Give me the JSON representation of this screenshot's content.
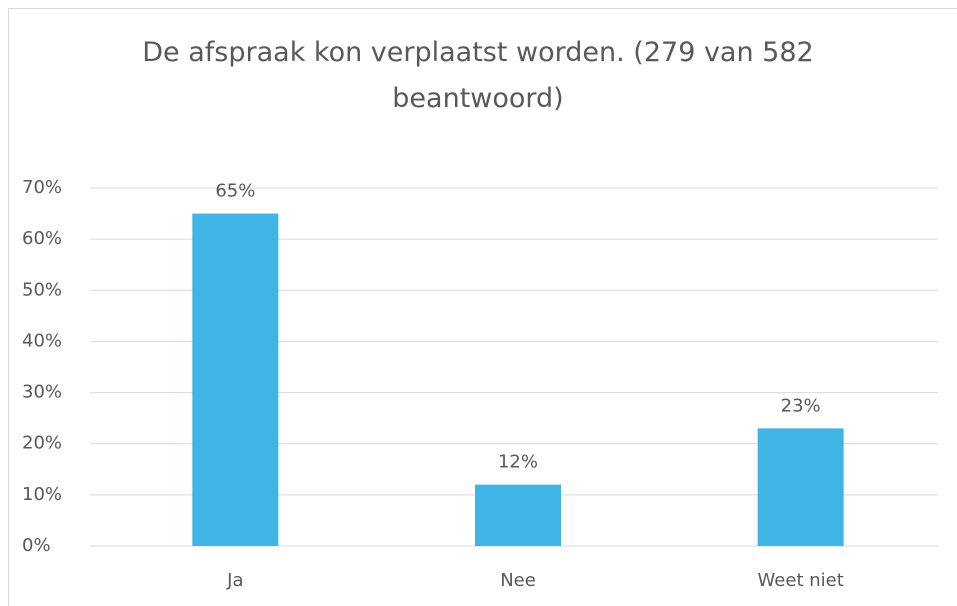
{
  "chart_data": {
    "type": "bar",
    "title": "De afspraak kon verplaatst worden. (279 van 582 beantwoord)",
    "categories": [
      "Ja",
      "Nee",
      "Weet niet"
    ],
    "values": [
      65,
      12,
      23
    ],
    "value_labels": [
      "65%",
      "12%",
      "23%"
    ],
    "color": "#41b4e6",
    "ylim": [
      0,
      70
    ],
    "yticks": [
      {
        "value": 0,
        "label": "0%"
      },
      {
        "value": 10,
        "label": "10%"
      },
      {
        "value": 20,
        "label": "20%"
      },
      {
        "value": 30,
        "label": "30%"
      },
      {
        "value": 40,
        "label": "40%"
      },
      {
        "value": 50,
        "label": "50%"
      },
      {
        "value": 60,
        "label": "60%"
      },
      {
        "value": 70,
        "label": "70%"
      }
    ],
    "grid": true
  }
}
